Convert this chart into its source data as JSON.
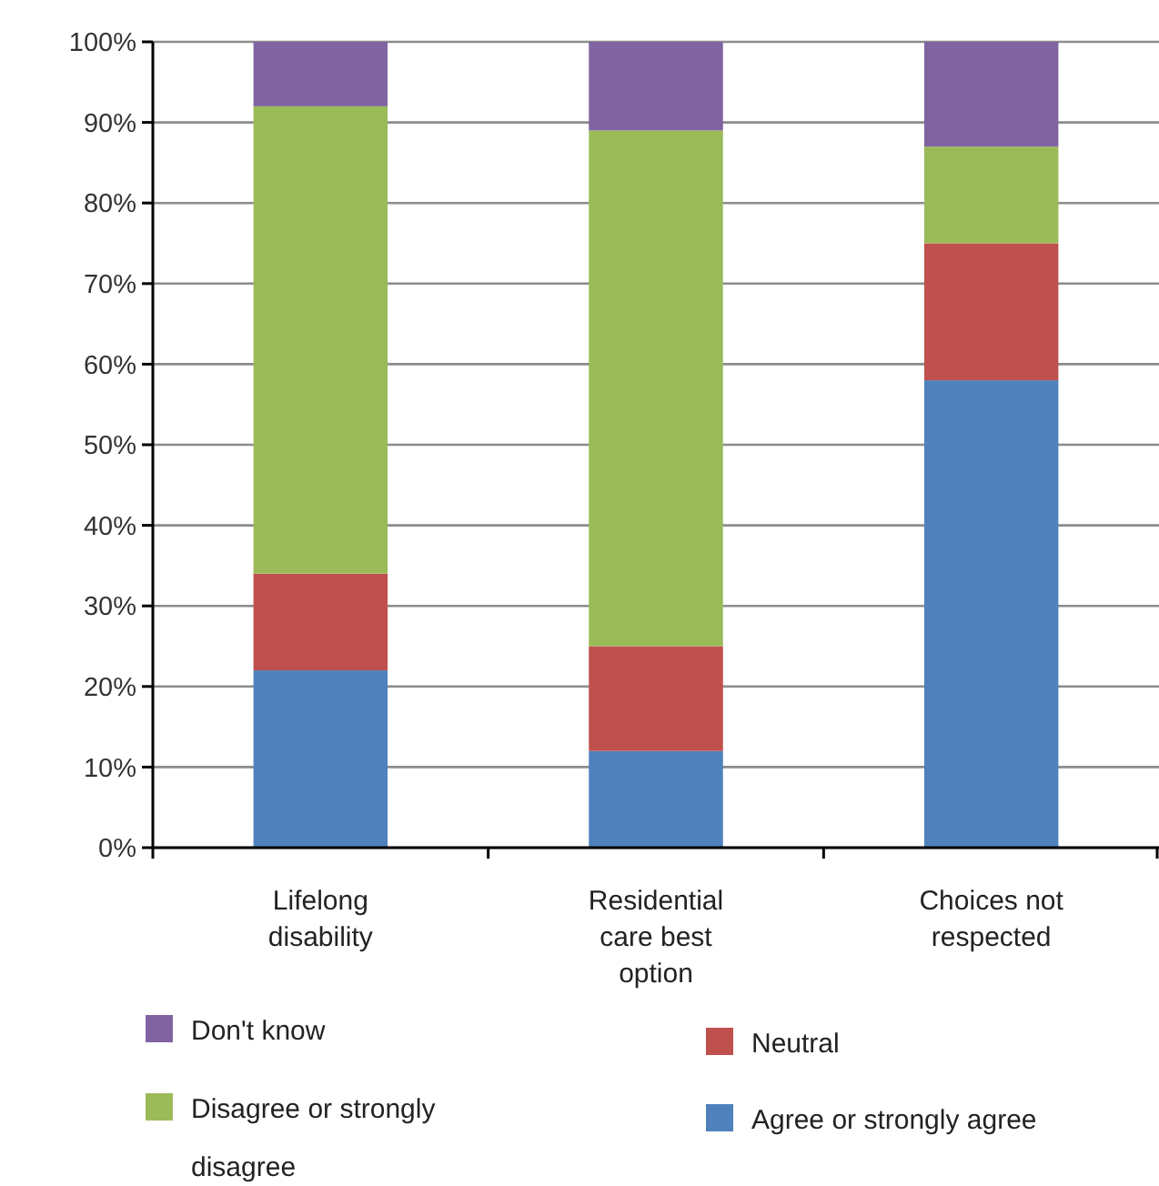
{
  "chart_data": {
    "type": "bar",
    "stacked": true,
    "categories": [
      "Lifelong disability",
      "Residential care best option",
      "Choices not respected"
    ],
    "series": [
      {
        "name": "Agree or strongly agree",
        "color": "#4f81bd",
        "values": [
          22,
          12,
          58
        ]
      },
      {
        "name": "Neutral",
        "color": "#c0504d",
        "values": [
          12,
          13,
          17
        ]
      },
      {
        "name": "Disagree or strongly disagree",
        "color": "#9bbb59",
        "values": [
          58,
          64,
          12
        ]
      },
      {
        "name": "Don't know",
        "color": "#8064a2",
        "values": [
          8,
          11,
          13
        ]
      }
    ],
    "ylim": [
      0,
      100
    ],
    "yticks": [
      {
        "value": 0,
        "label": "0%"
      },
      {
        "value": 10,
        "label": "10%"
      },
      {
        "value": 20,
        "label": "20%"
      },
      {
        "value": 30,
        "label": "30%"
      },
      {
        "value": 40,
        "label": "40%"
      },
      {
        "value": 50,
        "label": "50%"
      },
      {
        "value": 60,
        "label": "60%"
      },
      {
        "value": 70,
        "label": "70%"
      },
      {
        "value": 80,
        "label": "80%"
      },
      {
        "value": 90,
        "label": "90%"
      },
      {
        "value": 100,
        "label": "100%"
      }
    ],
    "grid": "y",
    "legend": "bottom"
  }
}
